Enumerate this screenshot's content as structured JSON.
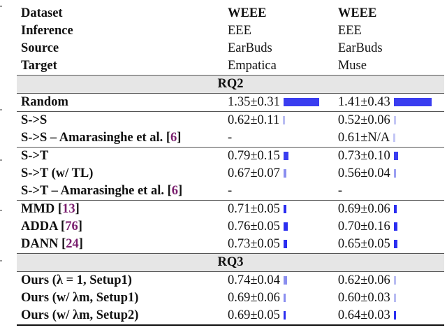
{
  "table": {
    "header_rows": [
      {
        "label": "Dataset",
        "col1": "WEEE",
        "col2": "WEEE"
      },
      {
        "label": "Inference",
        "col1": "EEE",
        "col2": "EEE"
      },
      {
        "label": "Source",
        "col1": "EarBuds",
        "col2": "EarBuds"
      },
      {
        "label": "Target",
        "col1": "Empatica",
        "col2": "Muse"
      }
    ],
    "sections": {
      "rq2": "RQ2",
      "rq3": "RQ3"
    },
    "rows": [
      {
        "name": "Random",
        "cite": "",
        "v1": "1.35±0.31",
        "v2": "1.41±0.43",
        "b1": 1.35,
        "b2": 1.41,
        "c1": "#3a3df0",
        "c2": "#3a3df0"
      },
      {
        "name": "S->S",
        "cite": "",
        "v1": "0.62±0.11",
        "v2": "0.52±0.06",
        "b1": 0.07,
        "b2": 0.06,
        "c1": "#b9bdf2",
        "c2": "#c4c7f5"
      },
      {
        "name": "S->S – Amarasinghe et al. [",
        "cite": "6",
        "suffix": "]",
        "v1": "-",
        "v2": "0.61±N/A",
        "b1": 0,
        "b2": 0.07,
        "c1": "#ffffff",
        "c2": "#c4c7f5"
      },
      {
        "name": "S->T",
        "cite": "",
        "v1": "0.79±0.15",
        "v2": "0.73±0.10",
        "b1": 0.19,
        "b2": 0.15,
        "c1": "#3a3df0",
        "c2": "#3a3df0"
      },
      {
        "name": "S->T (w/ TL)",
        "cite": "",
        "v1": "0.67±0.07",
        "v2": "0.56±0.04",
        "b1": 0.11,
        "b2": 0.03,
        "c1": "#8a8eef",
        "c2": "#9b9ff2"
      },
      {
        "name": "S->T – Amarasinghe et al. [",
        "cite": "6",
        "suffix": "]",
        "v1": "-",
        "v2": "-",
        "b1": 0,
        "b2": 0,
        "c1": "#ffffff",
        "c2": "#ffffff"
      },
      {
        "name": "MMD [",
        "cite": "13",
        "suffix": "]",
        "v1": "0.71±0.05",
        "v2": "0.69±0.06",
        "b1": 0.1,
        "b2": 0.1,
        "c1": "#2b2ef0",
        "c2": "#2b2ef0"
      },
      {
        "name": "ADDA [",
        "cite": "76",
        "suffix": "]",
        "v1": "0.76±0.05",
        "v2": "0.70±0.16",
        "b1": 0.15,
        "b2": 0.13,
        "c1": "#2b2ef0",
        "c2": "#2b2ef0"
      },
      {
        "name": "DANN [",
        "cite": "24",
        "suffix": "]",
        "v1": "0.73±0.05",
        "v2": "0.65±0.05",
        "b1": 0.13,
        "b2": 0.12,
        "c1": "#2b2ef0",
        "c2": "#2b2ef0"
      },
      {
        "name": "Ours (λ = 1, Setup1)",
        "cite": "",
        "v1": "0.74±0.04",
        "v2": "0.62±0.06",
        "b1": 0.13,
        "b2": 0.06,
        "c1": "#8a8eef",
        "c2": "#b9bdf2"
      },
      {
        "name": "Ours (w/ λm, Setup1)",
        "cite": "",
        "v1": "0.69±0.06",
        "v2": "0.60±0.03",
        "b1": 0.09,
        "b2": 0.06,
        "c1": "#8a8eef",
        "c2": "#b9bdf2"
      },
      {
        "name": "Ours (w/ λm, Setup2)",
        "cite": "",
        "v1": "0.69±0.05",
        "v2": "0.64±0.03",
        "b1": 0.09,
        "b2": 0.09,
        "c1": "#2b2ef0",
        "c2": "#2b2ef0"
      }
    ]
  }
}
